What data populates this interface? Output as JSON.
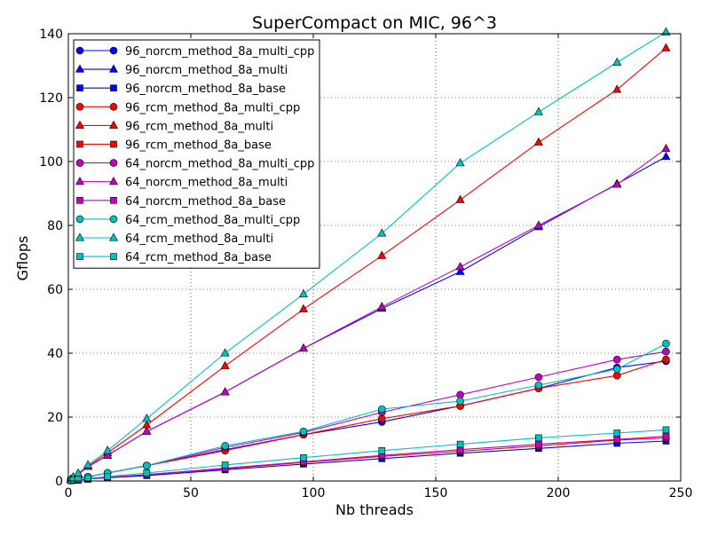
{
  "chart_data": {
    "type": "line",
    "title": "SuperCompact on MIC, 96^3",
    "xlabel": "Nb threads",
    "ylabel": "Gflops",
    "xlim": [
      0,
      250
    ],
    "ylim": [
      0,
      140
    ],
    "xticks": [
      0,
      50,
      100,
      150,
      200,
      250
    ],
    "yticks": [
      0,
      20,
      40,
      60,
      80,
      100,
      120,
      140
    ],
    "grid": true,
    "legend_position": "top-left",
    "x": [
      1,
      2,
      4,
      8,
      16,
      32,
      64,
      96,
      128,
      160,
      192,
      224,
      244
    ],
    "series": [
      {
        "name": "96_norcm_method_8a_multi_cpp",
        "color": "#0000ff",
        "marker": "circle",
        "values": [
          0.2,
          0.4,
          0.7,
          1.3,
          2.5,
          4.8,
          9.8,
          14.5,
          18.5,
          23.5,
          29.0,
          35.5,
          37.5
        ]
      },
      {
        "name": "96_norcm_method_8a_multi",
        "color": "#0000ff",
        "marker": "triangle",
        "values": [
          0.5,
          1.0,
          2.0,
          4.5,
          8.0,
          15.5,
          27.8,
          41.5,
          54.0,
          65.5,
          79.5,
          93.0,
          101.5
        ]
      },
      {
        "name": "96_norcm_method_8a_base",
        "color": "#0000ff",
        "marker": "square",
        "values": [
          0.1,
          0.2,
          0.3,
          0.6,
          1.0,
          1.7,
          3.5,
          5.3,
          7.0,
          8.7,
          10.2,
          11.8,
          12.5
        ]
      },
      {
        "name": "96_rcm_method_8a_multi_cpp",
        "color": "#ff0000",
        "marker": "circle",
        "values": [
          0.2,
          0.4,
          0.7,
          1.3,
          2.5,
          4.8,
          9.5,
          14.5,
          19.5,
          23.5,
          29.0,
          33.0,
          38.0
        ]
      },
      {
        "name": "96_rcm_method_8a_multi",
        "color": "#ff0000",
        "marker": "triangle",
        "values": [
          0.5,
          1.1,
          2.2,
          4.6,
          8.8,
          17.5,
          36.0,
          53.8,
          70.5,
          88.0,
          106.0,
          122.5,
          135.5
        ]
      },
      {
        "name": "96_rcm_method_8a_base",
        "color": "#ff0000",
        "marker": "square",
        "values": [
          0.1,
          0.2,
          0.3,
          0.6,
          1.1,
          2.0,
          3.8,
          5.8,
          7.7,
          9.3,
          11.0,
          12.8,
          13.5
        ]
      },
      {
        "name": "64_norcm_method_8a_multi_cpp",
        "color": "#bf00bf",
        "marker": "circle",
        "values": [
          0.2,
          0.4,
          0.7,
          1.3,
          2.5,
          4.8,
          10.5,
          15.2,
          21.5,
          27.0,
          32.5,
          38.0,
          40.5
        ]
      },
      {
        "name": "64_norcm_method_8a_multi",
        "color": "#bf00bf",
        "marker": "triangle",
        "values": [
          0.5,
          1.0,
          2.0,
          4.5,
          8.0,
          15.5,
          27.8,
          41.5,
          54.5,
          67.0,
          80.0,
          92.8,
          104.0
        ]
      },
      {
        "name": "64_norcm_method_8a_base",
        "color": "#bf00bf",
        "marker": "square",
        "values": [
          0.1,
          0.2,
          0.3,
          0.6,
          1.1,
          2.0,
          4.0,
          6.0,
          8.0,
          9.8,
          11.5,
          13.0,
          14.0
        ]
      },
      {
        "name": "64_rcm_method_8a_multi_cpp",
        "color": "#00bfbf",
        "marker": "circle",
        "values": [
          0.2,
          0.4,
          0.7,
          1.3,
          2.5,
          4.8,
          11.0,
          15.5,
          22.5,
          25.0,
          30.0,
          35.0,
          43.0
        ]
      },
      {
        "name": "64_rcm_method_8a_multi",
        "color": "#00bfbf",
        "marker": "triangle",
        "values": [
          0.5,
          1.2,
          2.4,
          5.0,
          9.5,
          19.5,
          40.0,
          58.5,
          77.5,
          99.5,
          115.5,
          131.0,
          140.5
        ]
      },
      {
        "name": "64_rcm_method_8a_base",
        "color": "#00bfbf",
        "marker": "square",
        "values": [
          0.15,
          0.3,
          0.5,
          0.8,
          1.4,
          2.5,
          5.0,
          7.3,
          9.5,
          11.5,
          13.5,
          15.0,
          16.0
        ]
      }
    ]
  }
}
